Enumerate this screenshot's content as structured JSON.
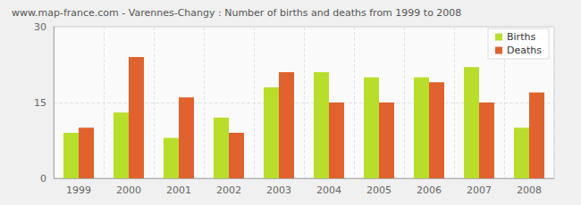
{
  "chart_data": {
    "type": "bar",
    "title": "www.map-france.com - Varennes-Changy : Number of births and deaths from 1999 to 2008",
    "categories": [
      "1999",
      "2000",
      "2001",
      "2002",
      "2003",
      "2004",
      "2005",
      "2006",
      "2007",
      "2008"
    ],
    "series": [
      {
        "name": "Births",
        "color": "#b8de2c",
        "values": [
          9,
          13,
          8,
          12,
          18,
          21,
          20,
          20,
          22,
          10
        ]
      },
      {
        "name": "Deaths",
        "color": "#e0622e",
        "values": [
          10,
          24,
          16,
          9,
          21,
          15,
          15,
          19,
          15,
          17
        ]
      }
    ],
    "ylim": [
      0,
      30
    ],
    "yticks": [
      0,
      15,
      30
    ],
    "grid": true,
    "legend": "top-right"
  }
}
